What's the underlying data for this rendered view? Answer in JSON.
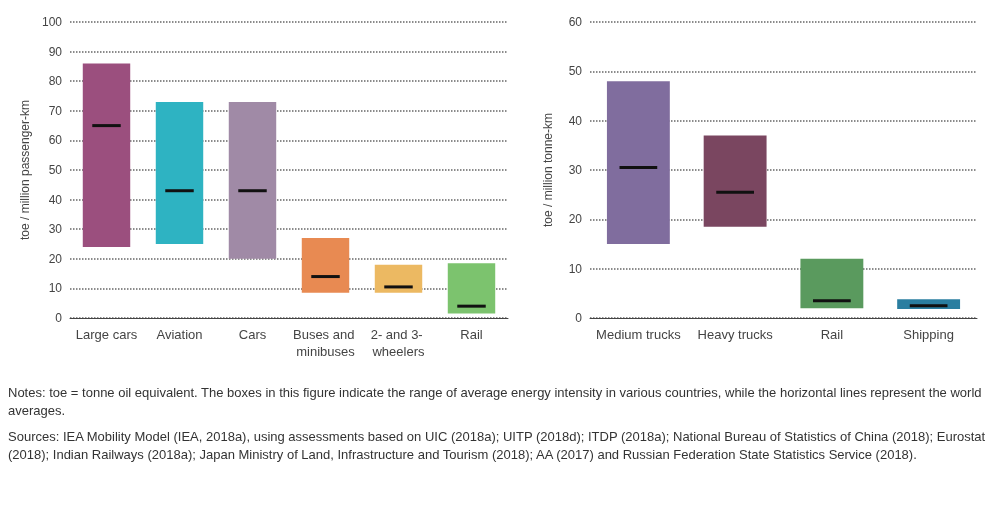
{
  "chart_data": [
    {
      "type": "box",
      "ylabel": "toe / million passenger-km",
      "categories": [
        "Large cars",
        "Aviation",
        "Cars",
        "Buses and minibuses",
        "2- and 3- wheelers",
        "Rail"
      ],
      "boxes": [
        {
          "low": 24,
          "q1": 24,
          "median": 65,
          "q3": 86,
          "high": 86
        },
        {
          "low": 25,
          "q1": 25,
          "median": 43,
          "q3": 73,
          "high": 73
        },
        {
          "low": 20,
          "q1": 20,
          "median": 43,
          "q3": 73,
          "high": 73
        },
        {
          "low": 8.5,
          "q1": 8.5,
          "median": 14,
          "q3": 27,
          "high": 27
        },
        {
          "low": 8.5,
          "q1": 8.5,
          "median": 10.5,
          "q3": 18,
          "high": 18
        },
        {
          "low": 1.5,
          "q1": 1.5,
          "median": 4,
          "q3": 18.5,
          "high": 18.5
        }
      ],
      "colors": [
        "#9b4f7e",
        "#2eb3c2",
        "#a08aa6",
        "#e88a52",
        "#ecb962",
        "#7cc36e"
      ],
      "ylim": [
        0,
        100
      ],
      "yticks": [
        0,
        10,
        20,
        30,
        40,
        50,
        60,
        70,
        80,
        90,
        100
      ],
      "grid": "y"
    },
    {
      "type": "box",
      "ylabel": "toe / million tonne-km",
      "categories": [
        "Medium trucks",
        "Heavy trucks",
        "Rail",
        "Shipping"
      ],
      "boxes": [
        {
          "low": 15,
          "q1": 15,
          "median": 30.5,
          "q3": 48,
          "high": 48
        },
        {
          "low": 18.5,
          "q1": 18.5,
          "median": 25.5,
          "q3": 37,
          "high": 37
        },
        {
          "low": 2,
          "q1": 2,
          "median": 3.5,
          "q3": 12,
          "high": 12
        },
        {
          "low": 1.8,
          "q1": 1.8,
          "median": 2.5,
          "q3": 3.8,
          "high": 3.8
        }
      ],
      "colors": [
        "#806d9e",
        "#7a4660",
        "#5a9a5e",
        "#2a7ea0"
      ],
      "ylim": [
        0,
        60
      ],
      "yticks": [
        0,
        10,
        20,
        30,
        40,
        50,
        60
      ],
      "grid": "y",
      "annotations": [
        "Notes: toe = tonne oil equivalent. The boxes in this figure indicate the range of average energy intensity in various countries, while the horizontal lines represent the world averages.",
        "Sources: IEA Mobility Model (IEA, 2018a), using assessments based on UIC (2018a); UITP (2018d); ITDP (2018a); National Bureau of Statistics of China (2018); Eurostat (2018); Indian Railways (2018a); Japan Ministry of Land, Infrastructure and Tourism (2018); AA (2017) and Russian Federation State Statistics Service (2018)."
      ]
    }
  ]
}
